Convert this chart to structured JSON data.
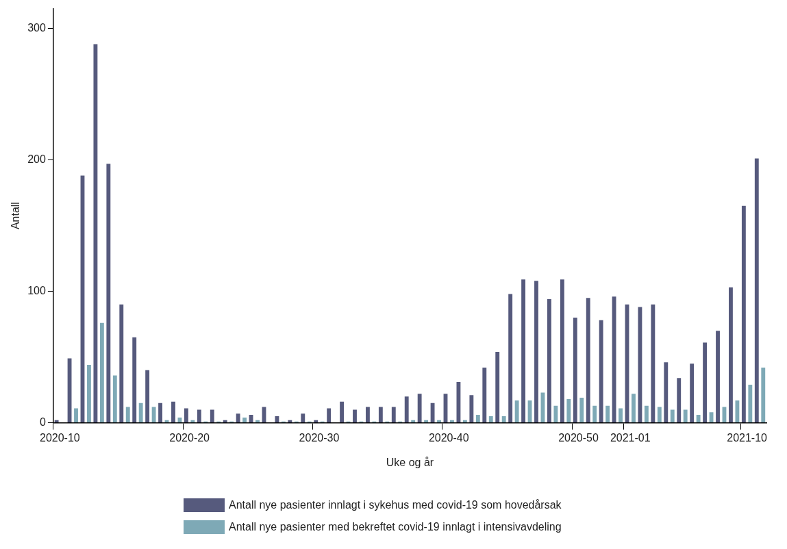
{
  "chart_data": {
    "type": "bar",
    "xlabel": "Uke og år",
    "ylabel": "Antall",
    "categories": [
      "2020-10",
      null,
      null,
      null,
      null,
      null,
      null,
      null,
      null,
      null,
      "2020-20",
      null,
      null,
      null,
      null,
      null,
      null,
      null,
      null,
      null,
      "2020-30",
      null,
      null,
      null,
      null,
      null,
      null,
      null,
      null,
      null,
      "2020-40",
      null,
      null,
      null,
      null,
      null,
      null,
      null,
      null,
      null,
      "2020-50",
      null,
      null,
      null,
      "2021-01",
      null,
      null,
      null,
      null,
      null,
      null,
      null,
      null,
      "2021-10",
      null
    ],
    "series": [
      {
        "name": "Antall nye pasienter innlagt i sykehus med covid-19 som hovedårsak",
        "color": "#565a7d",
        "values": [
          2,
          49,
          188,
          288,
          197,
          90,
          65,
          40,
          15,
          16,
          11,
          10,
          10,
          2,
          7,
          6,
          12,
          5,
          2,
          7,
          2,
          11,
          16,
          10,
          12,
          12,
          12,
          20,
          22,
          15,
          22,
          31,
          21,
          42,
          54,
          98,
          109,
          108,
          94,
          109,
          80,
          95,
          78,
          96,
          90,
          88,
          90,
          46,
          34,
          45,
          61,
          70,
          103,
          165,
          201
        ]
      },
      {
        "name": "Antall nye pasienter med bekreftet covid-19 innlagt i intensivavdeling",
        "color": "#7ea9b6",
        "values": [
          0,
          11,
          44,
          76,
          36,
          12,
          15,
          12,
          2,
          4,
          2,
          1,
          1,
          1,
          4,
          2,
          0,
          1,
          1,
          1,
          1,
          0,
          1,
          1,
          1,
          1,
          1,
          2,
          2,
          2,
          2,
          2,
          6,
          5,
          5,
          17,
          17,
          23,
          13,
          18,
          19,
          13,
          13,
          11,
          22,
          13,
          12,
          10,
          10,
          6,
          8,
          12,
          17,
          29,
          42
        ]
      }
    ],
    "ylim": [
      0,
      315
    ],
    "yticks": [
      0,
      100,
      200,
      300
    ],
    "grid": false,
    "legend": "bottom"
  }
}
